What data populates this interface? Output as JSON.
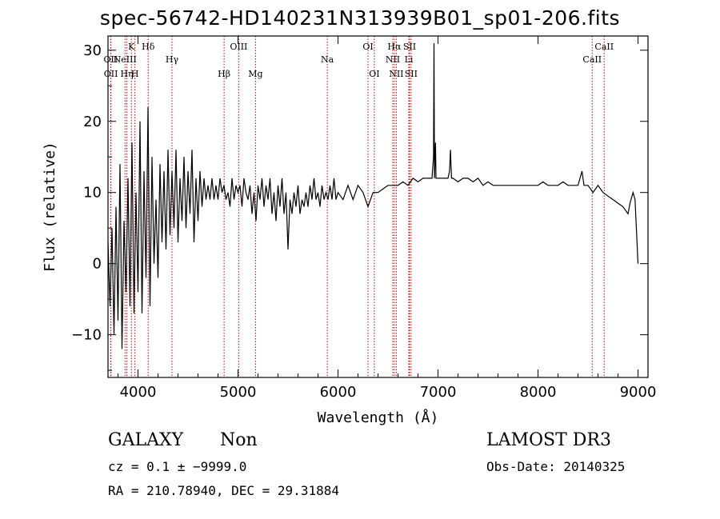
{
  "chart_data": {
    "type": "line",
    "title": "spec-56742-HD140231N313939B01_sp01-206.fits",
    "xlabel": "Wavelength (Å)",
    "ylabel": "Flux (relative)",
    "xlim": [
      3700,
      9100
    ],
    "ylim": [
      -16,
      32
    ],
    "xticks": [
      4000,
      5000,
      6000,
      7000,
      8000,
      9000
    ],
    "yticks": [
      -10,
      0,
      10,
      20,
      30
    ],
    "series": [
      {
        "values_xy": [
          [
            3700,
            3
          ],
          [
            3720,
            -6
          ],
          [
            3740,
            5
          ],
          [
            3760,
            -10
          ],
          [
            3780,
            8
          ],
          [
            3800,
            -8
          ],
          [
            3820,
            14
          ],
          [
            3840,
            -12
          ],
          [
            3860,
            6
          ],
          [
            3880,
            -4
          ],
          [
            3900,
            12
          ],
          [
            3920,
            -6
          ],
          [
            3940,
            17
          ],
          [
            3960,
            -7
          ],
          [
            3980,
            10
          ],
          [
            4000,
            -4
          ],
          [
            4020,
            20
          ],
          [
            4040,
            -7
          ],
          [
            4060,
            13
          ],
          [
            4080,
            -2
          ],
          [
            4100,
            22
          ],
          [
            4120,
            -6
          ],
          [
            4140,
            15
          ],
          [
            4160,
            0
          ],
          [
            4180,
            9
          ],
          [
            4200,
            -2
          ],
          [
            4220,
            14
          ],
          [
            4240,
            3
          ],
          [
            4260,
            13
          ],
          [
            4280,
            2
          ],
          [
            4300,
            16
          ],
          [
            4320,
            4
          ],
          [
            4340,
            13
          ],
          [
            4360,
            5
          ],
          [
            4380,
            16
          ],
          [
            4400,
            3
          ],
          [
            4420,
            12
          ],
          [
            4440,
            6
          ],
          [
            4460,
            15
          ],
          [
            4480,
            5
          ],
          [
            4500,
            13
          ],
          [
            4520,
            7
          ],
          [
            4540,
            16
          ],
          [
            4560,
            3
          ],
          [
            4580,
            12
          ],
          [
            4600,
            6
          ],
          [
            4620,
            13
          ],
          [
            4640,
            8
          ],
          [
            4660,
            12
          ],
          [
            4680,
            9
          ],
          [
            4700,
            11
          ],
          [
            4720,
            9
          ],
          [
            4740,
            12
          ],
          [
            4760,
            9
          ],
          [
            4780,
            11
          ],
          [
            4800,
            9
          ],
          [
            4820,
            12
          ],
          [
            4840,
            10
          ],
          [
            4860,
            11
          ],
          [
            4880,
            9
          ],
          [
            4900,
            10
          ],
          [
            4920,
            8
          ],
          [
            4940,
            12
          ],
          [
            4960,
            9
          ],
          [
            4980,
            11
          ],
          [
            5000,
            10
          ],
          [
            5020,
            11
          ],
          [
            5040,
            8
          ],
          [
            5060,
            12
          ],
          [
            5080,
            10
          ],
          [
            5100,
            9
          ],
          [
            5120,
            11
          ],
          [
            5140,
            7
          ],
          [
            5160,
            10
          ],
          [
            5180,
            6
          ],
          [
            5200,
            11
          ],
          [
            5220,
            9
          ],
          [
            5240,
            12
          ],
          [
            5260,
            8
          ],
          [
            5280,
            11
          ],
          [
            5300,
            9
          ],
          [
            5320,
            12
          ],
          [
            5340,
            7
          ],
          [
            5360,
            10
          ],
          [
            5380,
            6
          ],
          [
            5400,
            11
          ],
          [
            5420,
            8
          ],
          [
            5440,
            12
          ],
          [
            5460,
            7
          ],
          [
            5480,
            10
          ],
          [
            5500,
            2
          ],
          [
            5520,
            9
          ],
          [
            5540,
            7
          ],
          [
            5560,
            10
          ],
          [
            5580,
            8
          ],
          [
            5600,
            11
          ],
          [
            5620,
            7
          ],
          [
            5640,
            9
          ],
          [
            5660,
            8
          ],
          [
            5680,
            10
          ],
          [
            5700,
            8
          ],
          [
            5720,
            11
          ],
          [
            5740,
            9
          ],
          [
            5760,
            12
          ],
          [
            5780,
            9
          ],
          [
            5800,
            10
          ],
          [
            5820,
            8
          ],
          [
            5840,
            11
          ],
          [
            5860,
            9
          ],
          [
            5880,
            10
          ],
          [
            5900,
            9
          ],
          [
            5920,
            11
          ],
          [
            5940,
            9
          ],
          [
            5960,
            12
          ],
          [
            5980,
            9
          ],
          [
            6000,
            10
          ],
          [
            6050,
            9
          ],
          [
            6100,
            11
          ],
          [
            6150,
            9
          ],
          [
            6200,
            11
          ],
          [
            6250,
            10
          ],
          [
            6300,
            8
          ],
          [
            6350,
            10
          ],
          [
            6400,
            10
          ],
          [
            6450,
            10.5
          ],
          [
            6500,
            11
          ],
          [
            6550,
            11
          ],
          [
            6600,
            11
          ],
          [
            6650,
            11.5
          ],
          [
            6700,
            11
          ],
          [
            6750,
            12
          ],
          [
            6800,
            11.5
          ],
          [
            6850,
            12
          ],
          [
            6900,
            12
          ],
          [
            6940,
            12
          ],
          [
            6955,
            15
          ],
          [
            6960,
            31
          ],
          [
            6965,
            12
          ],
          [
            6975,
            17
          ],
          [
            6980,
            12
          ],
          [
            7000,
            12
          ],
          [
            7050,
            12
          ],
          [
            7100,
            12
          ],
          [
            7115,
            13
          ],
          [
            7125,
            16
          ],
          [
            7135,
            12
          ],
          [
            7150,
            12
          ],
          [
            7200,
            11.5
          ],
          [
            7250,
            12
          ],
          [
            7300,
            12
          ],
          [
            7350,
            11.5
          ],
          [
            7400,
            12
          ],
          [
            7450,
            11
          ],
          [
            7500,
            11.5
          ],
          [
            7550,
            11
          ],
          [
            7600,
            11
          ],
          [
            7650,
            11
          ],
          [
            7700,
            11
          ],
          [
            7750,
            11
          ],
          [
            7800,
            11
          ],
          [
            7850,
            11
          ],
          [
            7900,
            11
          ],
          [
            7950,
            11
          ],
          [
            8000,
            11
          ],
          [
            8050,
            11.5
          ],
          [
            8100,
            11
          ],
          [
            8150,
            11
          ],
          [
            8200,
            11
          ],
          [
            8250,
            11.5
          ],
          [
            8300,
            11
          ],
          [
            8350,
            11
          ],
          [
            8400,
            11
          ],
          [
            8420,
            12
          ],
          [
            8440,
            13
          ],
          [
            8460,
            11
          ],
          [
            8500,
            11
          ],
          [
            8550,
            10
          ],
          [
            8600,
            11
          ],
          [
            8650,
            10
          ],
          [
            8700,
            9.5
          ],
          [
            8750,
            9
          ],
          [
            8800,
            8.5
          ],
          [
            8850,
            8
          ],
          [
            8900,
            7
          ],
          [
            8920,
            8.5
          ],
          [
            8950,
            10
          ],
          [
            8970,
            9
          ],
          [
            9000,
            0
          ]
        ]
      }
    ],
    "lines": [
      {
        "x": 3727,
        "labels": [
          "OII"
        ],
        "row": 1
      },
      {
        "x": 3729,
        "labels": [
          "OII"
        ],
        "row": 2
      },
      {
        "x": 3870,
        "labels": [
          "NeIII"
        ],
        "row": 1
      },
      {
        "x": 3889,
        "labels": [
          "Hη"
        ],
        "row": 2
      },
      {
        "x": 3934,
        "labels": [
          "K"
        ],
        "row": 0
      },
      {
        "x": 3969,
        "labels": [
          "H"
        ],
        "row": 2
      },
      {
        "x": 4102,
        "labels": [
          "Hδ"
        ],
        "row": 0
      },
      {
        "x": 4340,
        "labels": [
          "Hγ"
        ],
        "row": 1
      },
      {
        "x": 4861,
        "labels": [
          "Hβ"
        ],
        "row": 2
      },
      {
        "x": 5007,
        "labels": [
          "OIII"
        ],
        "row": 0
      },
      {
        "x": 5175,
        "labels": [
          "Mg"
        ],
        "row": 2
      },
      {
        "x": 5893,
        "labels": [
          "Na"
        ],
        "row": 1
      },
      {
        "x": 6300,
        "labels": [
          "OI"
        ],
        "row": 0
      },
      {
        "x": 6363,
        "labels": [
          "OI"
        ],
        "row": 2
      },
      {
        "x": 6563,
        "labels": [
          "Hα"
        ],
        "row": 0
      },
      {
        "x": 6548,
        "labels": [
          "NII"
        ],
        "row": 1
      },
      {
        "x": 6583,
        "labels": [
          "NII"
        ],
        "row": 2
      },
      {
        "x": 6716,
        "labels": [
          "SII"
        ],
        "row": 0
      },
      {
        "x": 6708,
        "labels": [
          "Li"
        ],
        "row": 1
      },
      {
        "x": 6731,
        "labels": [
          "SII"
        ],
        "row": 2
      },
      {
        "x": 8662,
        "labels": [
          "CaII"
        ],
        "row": 0
      },
      {
        "x": 8542,
        "labels": [
          "CaII"
        ],
        "row": 1
      }
    ]
  },
  "info": {
    "class": "GALAXY",
    "subclass": "Non",
    "survey": "LAMOST DR3",
    "cz": "cz = 0.1 ± −9999.0",
    "obsdate": "Obs-Date: 20140325",
    "radec": "RA = 210.78940, DEC =  29.31884"
  },
  "colors": {
    "line_marker": "#cc0000",
    "spectrum": "#000000",
    "axes": "#000000"
  }
}
